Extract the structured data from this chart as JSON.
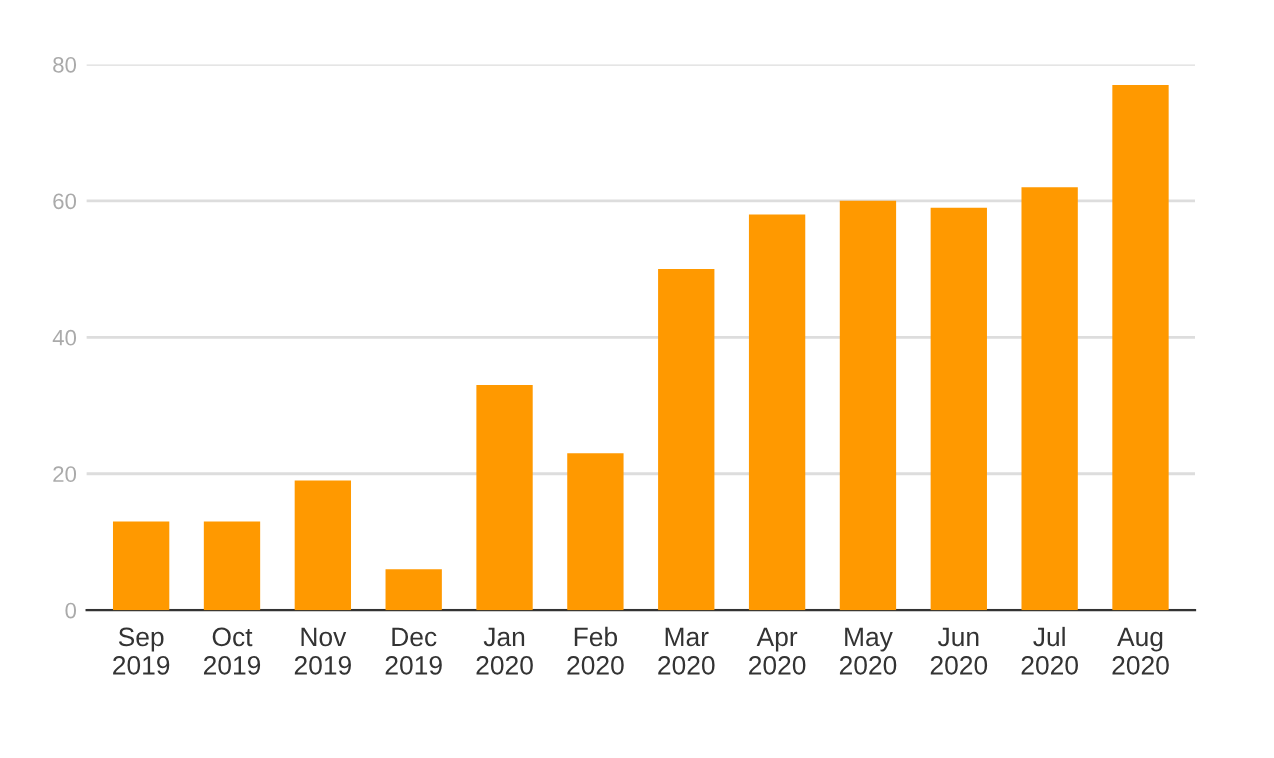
{
  "chart_data": {
    "type": "bar",
    "categories": [
      "Sep\n2019",
      "Oct\n2019",
      "Nov\n2019",
      "Dec\n2019",
      "Jan\n2020",
      "Feb\n2020",
      "Mar\n2020",
      "Apr\n2020",
      "May\n2020",
      "Jun\n2020",
      "Jul\n2020",
      "Aug\n2020"
    ],
    "values": [
      13,
      13,
      19,
      6,
      33,
      23,
      50,
      58,
      60,
      59,
      62,
      77
    ],
    "color": "#ff9900",
    "ylim": [
      0,
      80
    ],
    "yticks": [
      0,
      20,
      40,
      60,
      80
    ],
    "grid": "y"
  }
}
